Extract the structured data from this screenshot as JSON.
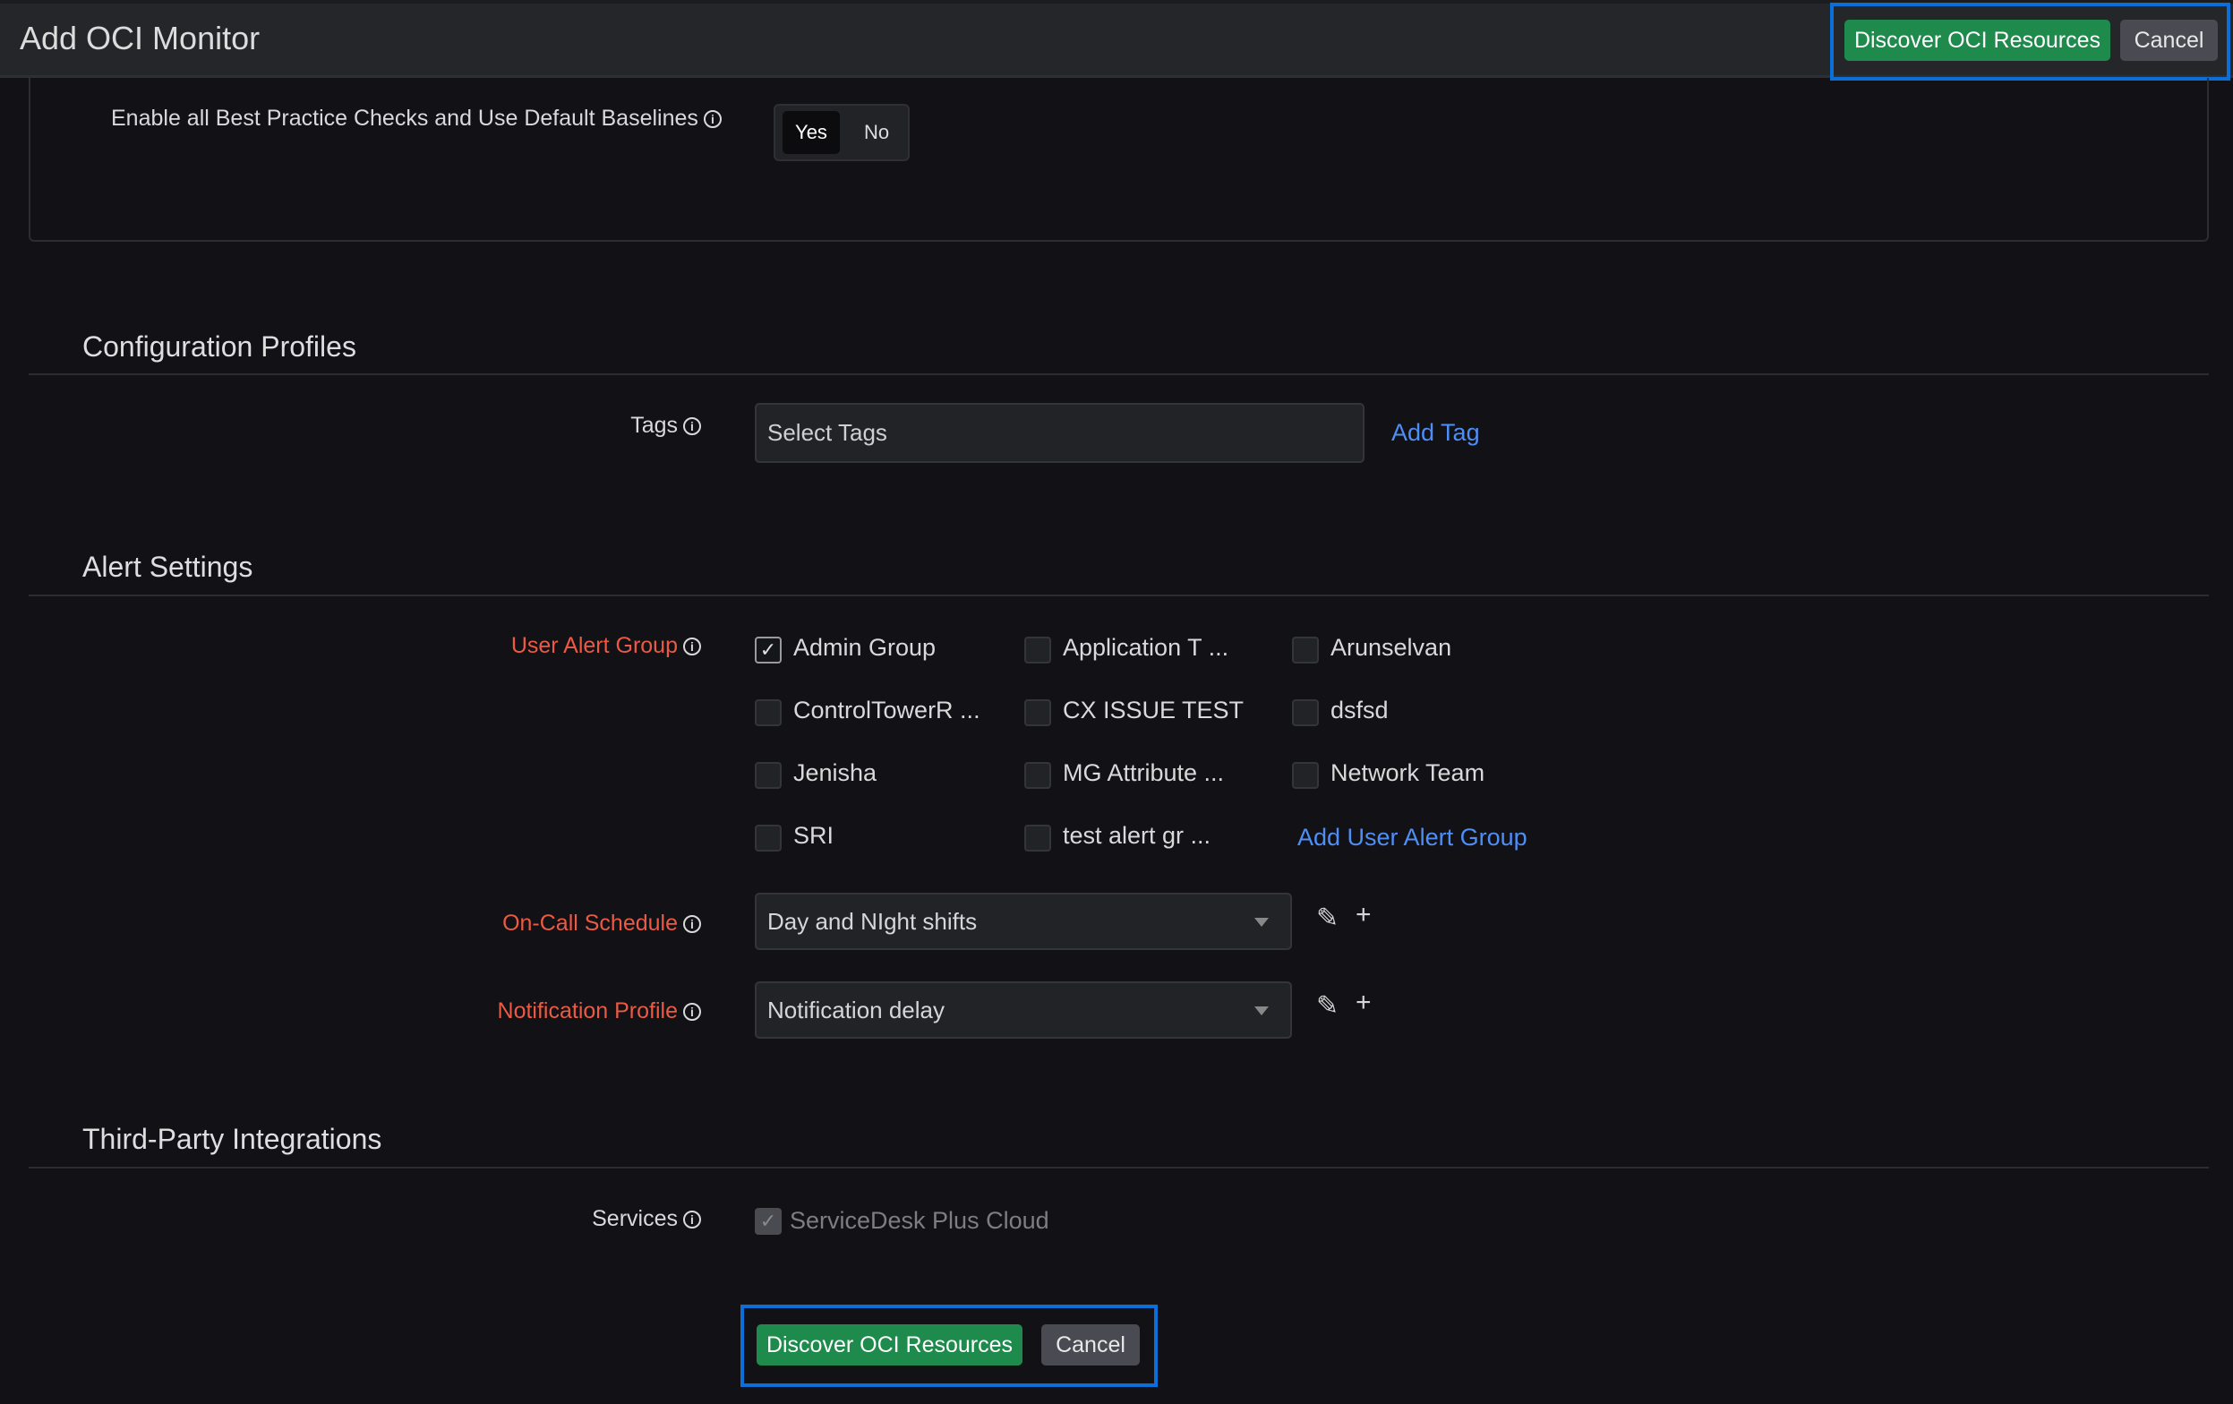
{
  "header": {
    "title": "Add OCI Monitor",
    "discover_label": "Discover OCI Resources",
    "cancel_label": "Cancel"
  },
  "best_practice": {
    "label": "Enable all Best Practice Checks and Use Default Baselines",
    "options": [
      "Yes",
      "No"
    ],
    "selected": "Yes"
  },
  "config_profiles": {
    "title": "Configuration Profiles",
    "tags_label": "Tags",
    "tags_placeholder": "Select Tags",
    "add_tag": "Add Tag"
  },
  "alert_settings": {
    "title": "Alert Settings",
    "user_alert_group_label": "User Alert Group",
    "groups": [
      {
        "label": "Admin Group",
        "checked": true
      },
      {
        "label": "Application T ...",
        "checked": false
      },
      {
        "label": "Arunselvan",
        "checked": false
      },
      {
        "label": "ControlTowerR ...",
        "checked": false
      },
      {
        "label": "CX ISSUE TEST",
        "checked": false
      },
      {
        "label": "dsfsd",
        "checked": false
      },
      {
        "label": "Jenisha",
        "checked": false
      },
      {
        "label": "MG Attribute ...",
        "checked": false
      },
      {
        "label": "Network Team",
        "checked": false
      },
      {
        "label": "SRI",
        "checked": false
      },
      {
        "label": "test alert gr ...",
        "checked": false
      }
    ],
    "add_group": "Add User Alert Group",
    "oncall_label": "On-Call Schedule",
    "oncall_value": "Day and NIght shifts",
    "notification_label": "Notification Profile",
    "notification_value": "Notification delay"
  },
  "integrations": {
    "title": "Third-Party Integrations",
    "services_label": "Services",
    "service": "ServiceDesk Plus Cloud",
    "service_checked": true
  },
  "footer": {
    "discover_label": "Discover OCI Resources",
    "cancel_label": "Cancel"
  },
  "colors": {
    "primary": "#1e8a4c",
    "required": "#ec5a43",
    "link": "#4e8ef7",
    "highlight": "#0a6fd8"
  }
}
